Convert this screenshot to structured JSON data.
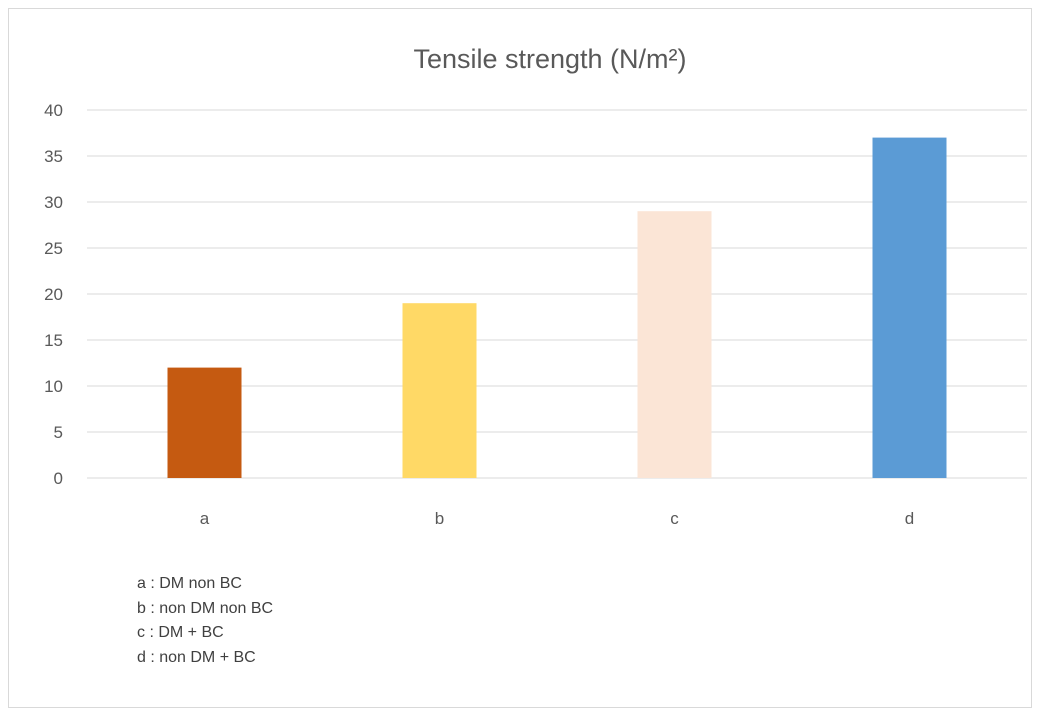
{
  "chart_data": {
    "type": "bar",
    "title": "Tensile strength (N/m²)",
    "categories": [
      "a",
      "b",
      "c",
      "d"
    ],
    "values": [
      12,
      19,
      29,
      37
    ],
    "colors": [
      "#C55A11",
      "#FFD966",
      "#FBE5D6",
      "#5B9BD5"
    ],
    "ylim": [
      0,
      40
    ],
    "yticks": [
      0,
      5,
      10,
      15,
      20,
      25,
      30,
      35,
      40
    ],
    "grid": true,
    "xlabel": "",
    "ylabel": ""
  },
  "notes": [
    "a : DM non BC",
    "b : non DM non BC",
    "c : DM + BC",
    "d : non DM + BC"
  ]
}
